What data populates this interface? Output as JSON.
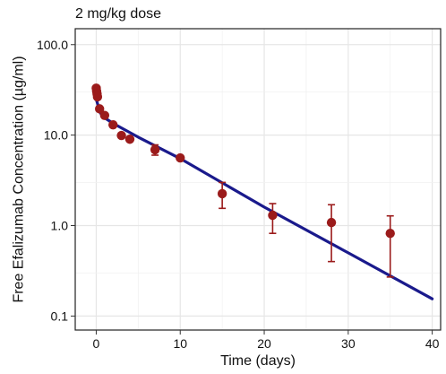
{
  "chart_data": {
    "type": "scatter",
    "title": "2 mg/kg dose",
    "xlabel": "Time (days)",
    "ylabel": "Free Efalizumab Concentration (µg/ml)",
    "xlim": [
      -2.5,
      41
    ],
    "ylim": [
      0.07,
      150
    ],
    "y_scale": "log",
    "x_ticks": [
      0,
      10,
      20,
      30,
      40
    ],
    "x_tick_labels": [
      "0",
      "10",
      "20",
      "30",
      "40"
    ],
    "y_ticks": [
      0.1,
      1,
      10,
      100
    ],
    "y_tick_labels": [
      "0.1",
      "1.0",
      "10.0",
      "100.0"
    ],
    "grid": true,
    "colors": {
      "observed": "#9b1b1b",
      "model": "#1a1a8c",
      "grid": "#e6e6e6",
      "frame": "#222222"
    },
    "series": [
      {
        "kind": "observed",
        "style": "points-with-error-bars",
        "points": [
          {
            "x": 0.0,
            "y": 33.0
          },
          {
            "x": 0.05,
            "y": 30.5
          },
          {
            "x": 0.1,
            "y": 28.5
          },
          {
            "x": 0.15,
            "y": 26.5
          },
          {
            "x": 0.4,
            "y": 19.5
          },
          {
            "x": 1.0,
            "y": 16.5
          },
          {
            "x": 2.0,
            "y": 13.0
          },
          {
            "x": 3.0,
            "y": 9.9
          },
          {
            "x": 4.0,
            "y": 9.0
          },
          {
            "x": 7.0,
            "y": 6.9,
            "lo": 6.0,
            "hi": 7.8
          },
          {
            "x": 10.0,
            "y": 5.6
          },
          {
            "x": 15.0,
            "y": 2.25,
            "lo": 1.55,
            "hi": 3.0
          },
          {
            "x": 21.0,
            "y": 1.3,
            "lo": 0.82,
            "hi": 1.75
          },
          {
            "x": 28.0,
            "y": 1.08,
            "lo": 0.4,
            "hi": 1.7
          },
          {
            "x": 35.0,
            "y": 0.82,
            "lo": 0.27,
            "hi": 1.28
          }
        ]
      },
      {
        "kind": "model",
        "style": "line",
        "points": [
          {
            "x": 0.0,
            "y": 25.0
          },
          {
            "x": 0.5,
            "y": 17.5
          },
          {
            "x": 1.0,
            "y": 15.5
          },
          {
            "x": 2.0,
            "y": 13.5
          },
          {
            "x": 5.0,
            "y": 9.5
          },
          {
            "x": 10.0,
            "y": 5.5
          },
          {
            "x": 20.0,
            "y": 1.6
          },
          {
            "x": 30.0,
            "y": 0.5
          },
          {
            "x": 40.0,
            "y": 0.155
          }
        ]
      }
    ]
  }
}
